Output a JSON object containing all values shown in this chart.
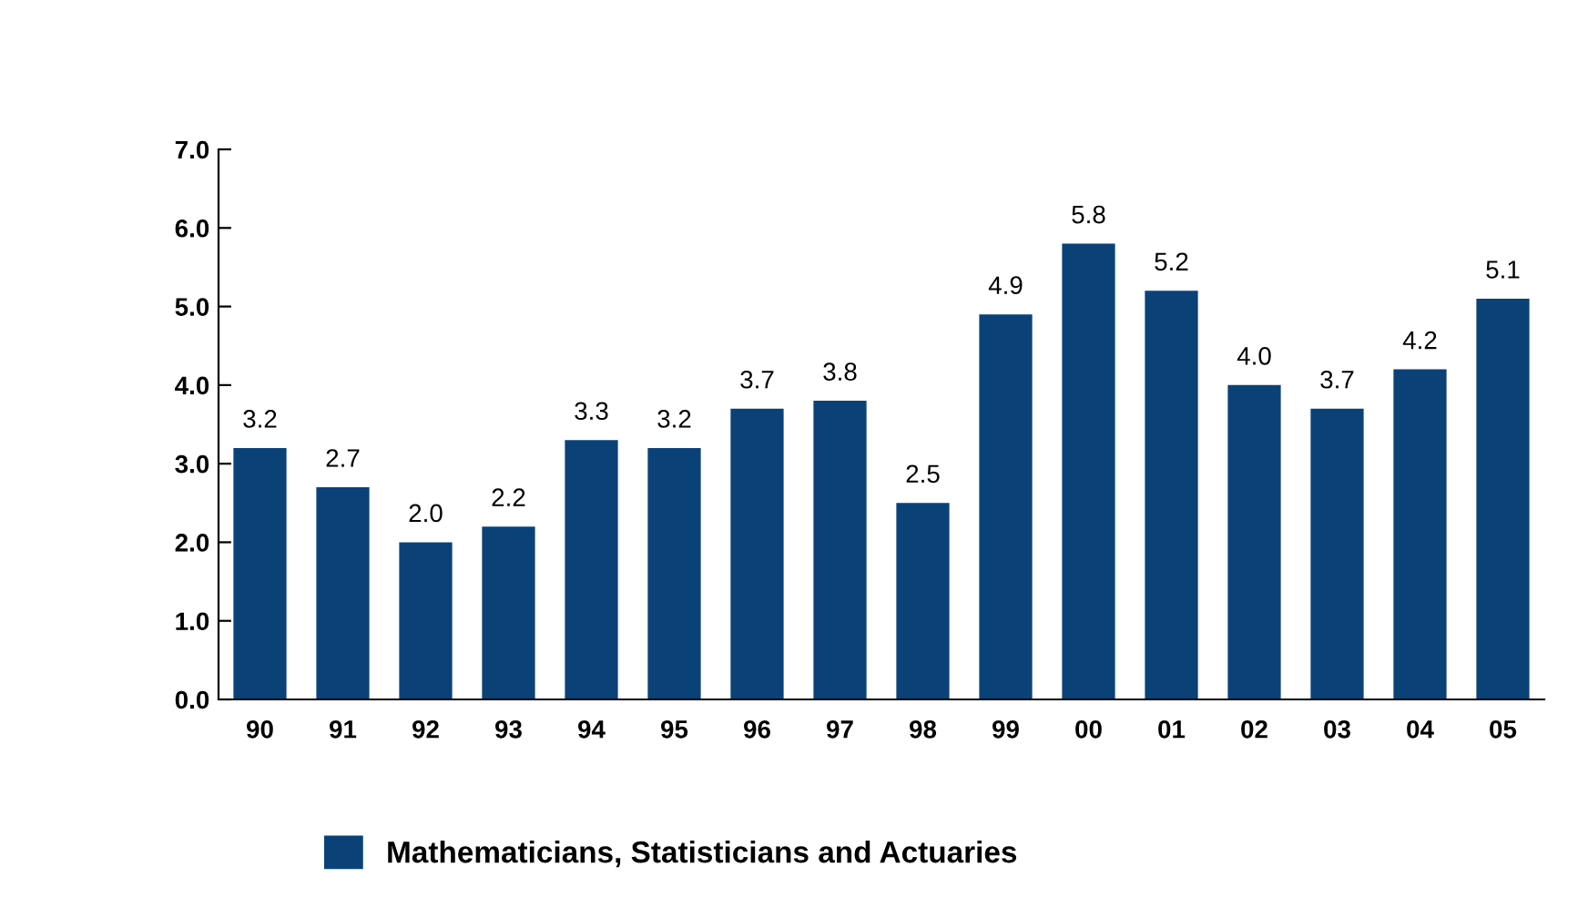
{
  "chart_data": {
    "type": "bar",
    "categories": [
      "90",
      "91",
      "92",
      "93",
      "94",
      "95",
      "96",
      "97",
      "98",
      "99",
      "00",
      "01",
      "02",
      "03",
      "04",
      "05"
    ],
    "series": [
      {
        "name": "Mathematicians, Statisticians and Actuaries",
        "color": "#0a4278",
        "values": [
          3.2,
          2.7,
          2.0,
          2.2,
          3.3,
          3.2,
          3.7,
          3.8,
          2.5,
          4.9,
          5.8,
          5.2,
          4.0,
          3.7,
          4.2,
          5.1
        ],
        "value_labels": [
          "3.2",
          "2.7",
          "2.0",
          "2.2",
          "3.3",
          "3.2",
          "3.7",
          "3.8",
          "2.5",
          "4.9",
          "5.8",
          "5.2",
          "4.0",
          "3.7",
          "4.2",
          "5.1"
        ]
      }
    ],
    "ylim": [
      0,
      7
    ],
    "yticks": [
      {
        "value": 0,
        "label": "0.0"
      },
      {
        "value": 1,
        "label": "1.0"
      },
      {
        "value": 2,
        "label": "2.0"
      },
      {
        "value": 3,
        "label": "3.0"
      },
      {
        "value": 4,
        "label": "4.0"
      },
      {
        "value": 5,
        "label": "5.0"
      },
      {
        "value": 6,
        "label": "6.0"
      },
      {
        "value": 7,
        "label": "7.0"
      }
    ],
    "grid": false,
    "legend": "bottom"
  }
}
